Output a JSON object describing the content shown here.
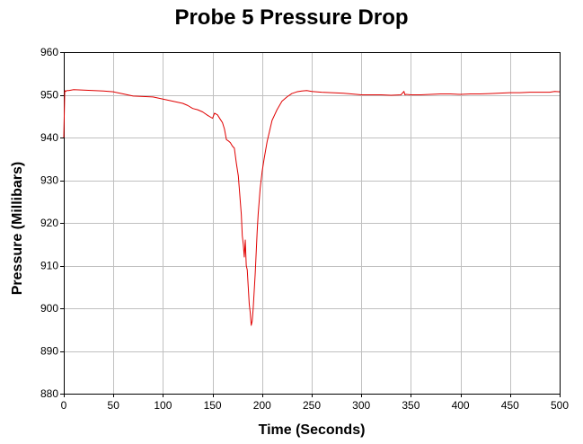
{
  "chart_data": {
    "type": "line",
    "title": "Probe 5 Pressure Drop",
    "xlabel": "Time (Seconds)",
    "ylabel": "Pressure (Millibars)",
    "xlim": [
      0,
      500
    ],
    "ylim": [
      880,
      960
    ],
    "xticks": [
      0,
      50,
      100,
      150,
      200,
      250,
      300,
      350,
      400,
      450,
      500
    ],
    "yticks": [
      880,
      890,
      900,
      910,
      920,
      930,
      940,
      950,
      960
    ],
    "grid": true,
    "colors": {
      "line": "#e00000",
      "grid": "#c0c0c0",
      "frame": "#000000"
    },
    "series": [
      {
        "x": [
          0,
          1,
          2,
          3,
          5,
          10,
          20,
          30,
          40,
          50,
          60,
          70,
          80,
          90,
          100,
          110,
          120,
          125,
          130,
          135,
          140,
          145,
          150,
          152,
          155,
          158,
          160,
          162,
          164,
          166,
          168,
          170,
          172,
          174,
          176,
          177,
          178,
          179,
          180,
          181,
          182,
          183,
          184,
          185,
          186,
          187,
          188,
          189,
          190,
          191,
          192,
          193,
          194,
          195,
          196,
          197,
          198,
          200,
          202,
          205,
          208,
          210,
          215,
          220,
          225,
          230,
          235,
          240,
          245,
          250,
          260,
          270,
          280,
          290,
          300,
          310,
          320,
          330,
          340,
          343,
          344,
          345,
          350,
          360,
          370,
          380,
          390,
          400,
          410,
          420,
          430,
          440,
          450,
          460,
          470,
          480,
          490,
          495,
          500
        ],
        "values": [
          940,
          951,
          950.8,
          951,
          951,
          951.2,
          951.1,
          951,
          950.9,
          950.7,
          950.2,
          949.7,
          949.6,
          949.5,
          949,
          948.5,
          948,
          947.5,
          946.8,
          946.5,
          946,
          945.2,
          944.5,
          945.7,
          945.3,
          944.2,
          943.5,
          942,
          939.5,
          939.2,
          938.8,
          938,
          937.5,
          934,
          931,
          928,
          925,
          922,
          917,
          915,
          912,
          916,
          910,
          909,
          905,
          901,
          899,
          896,
          897,
          900,
          904,
          908,
          913,
          918,
          922,
          925,
          928,
          932,
          935,
          939,
          942,
          944,
          946.5,
          948.5,
          949.5,
          950.3,
          950.7,
          950.9,
          951,
          950.8,
          950.6,
          950.5,
          950.4,
          950.2,
          950,
          950,
          950,
          949.9,
          950,
          950.8,
          950,
          950.1,
          950,
          950,
          950.1,
          950.2,
          950.2,
          950.1,
          950.2,
          950.2,
          950.3,
          950.4,
          950.5,
          950.5,
          950.6,
          950.6,
          950.6,
          950.8,
          950.7
        ]
      }
    ]
  }
}
